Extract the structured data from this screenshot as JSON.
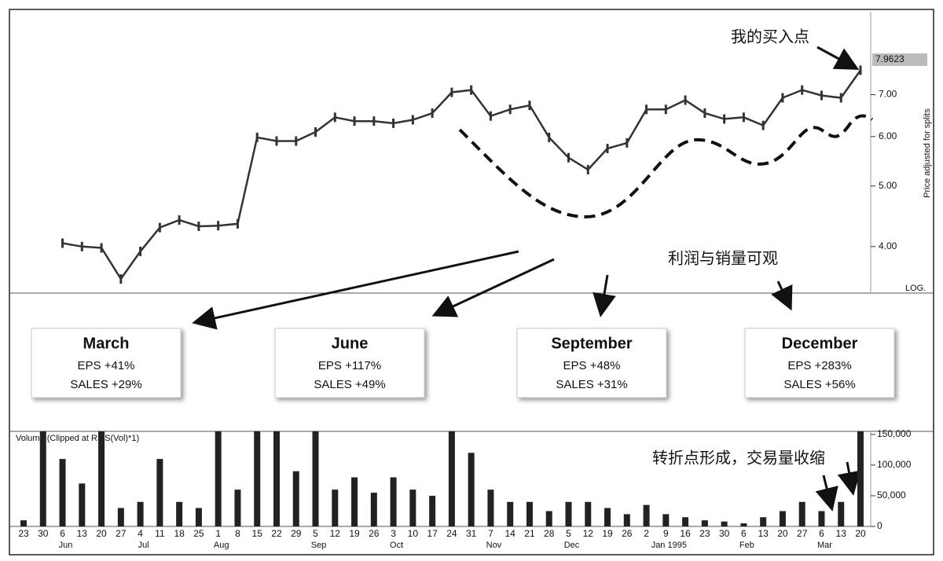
{
  "chart_data": [
    {
      "type": "line",
      "log": true,
      "color": "#333333",
      "values": [
        null,
        null,
        4.05,
        4.0,
        3.98,
        3.55,
        3.93,
        4.29,
        4.41,
        4.31,
        4.32,
        4.35,
        5.98,
        5.9,
        5.9,
        6.1,
        6.44,
        6.35,
        6.35,
        6.3,
        6.38,
        6.54,
        7.06,
        7.12,
        6.47,
        6.63,
        6.73,
        5.98,
        5.55,
        5.31,
        5.74,
        5.86,
        6.63,
        6.63,
        6.86,
        6.54,
        6.4,
        6.44,
        6.25,
        6.92,
        7.12,
        6.98,
        6.92,
        7.66
      ],
      "ylim": [
        3.37,
        9.5
      ],
      "yticks": [
        {
          "value": 4,
          "label": "4.00"
        },
        {
          "value": 5,
          "label": "5.00"
        },
        {
          "value": 6,
          "label": "6.00"
        },
        {
          "value": 7,
          "label": "7.00"
        }
      ],
      "last_price": 7.9623,
      "y_label": "Price adjusted for splits",
      "scale_label": "LOG.",
      "annotations": [
        "我的买入点",
        "利润与销量可观",
        "转折点形成，交易量收缩"
      ],
      "boxes": [
        {
          "title": "March",
          "eps": "EPS +41%",
          "sales": "SALES +29%"
        },
        {
          "title": "June",
          "eps": "EPS +117%",
          "sales": "SALES +49%"
        },
        {
          "title": "September",
          "eps": "EPS +48%",
          "sales": "SALES +31%"
        },
        {
          "title": "December",
          "eps": "EPS +283%",
          "sales": "SALES +56%"
        }
      ]
    },
    {
      "type": "bar",
      "color": "#222222",
      "title": "Volume (Clipped at RMS(Vol)*1)",
      "categories": [
        "23",
        "30",
        "6",
        "13",
        "20",
        "27",
        "4",
        "11",
        "18",
        "25",
        "1",
        "8",
        "15",
        "22",
        "29",
        "5",
        "12",
        "19",
        "26",
        "3",
        "10",
        "17",
        "24",
        "31",
        "7",
        "14",
        "21",
        "28",
        "5",
        "12",
        "19",
        "26",
        "2",
        "9",
        "16",
        "23",
        "30",
        "6",
        "13",
        "20",
        "27",
        "6",
        "13",
        "20"
      ],
      "months": [
        null,
        null,
        "Jun",
        null,
        null,
        null,
        "Jul",
        null,
        null,
        null,
        "Aug",
        null,
        null,
        null,
        null,
        "Sep",
        null,
        null,
        null,
        "Oct",
        null,
        null,
        null,
        null,
        "Nov",
        null,
        null,
        null,
        "Dec",
        null,
        null,
        null,
        null,
        "Jan 1995",
        null,
        null,
        null,
        "Feb",
        null,
        null,
        null,
        "Mar",
        null,
        null
      ],
      "values": [
        10000,
        155000,
        110000,
        70000,
        155000,
        30000,
        40000,
        110000,
        40000,
        30000,
        155000,
        60000,
        155000,
        155000,
        90000,
        155000,
        60000,
        80000,
        55000,
        80000,
        60000,
        50000,
        155000,
        120000,
        60000,
        40000,
        40000,
        25000,
        40000,
        40000,
        30000,
        20000,
        35000,
        20000,
        15000,
        10000,
        8000,
        5000,
        15000,
        25000,
        40000,
        25000,
        40000,
        155000
      ],
      "ylim": [
        0,
        155000
      ],
      "yticks": [
        0,
        {
          "value": 50000,
          "label": "50,000"
        },
        {
          "value": 100000,
          "label": "100,000"
        },
        {
          "value": 150000,
          "label": "150,000"
        }
      ]
    }
  ]
}
